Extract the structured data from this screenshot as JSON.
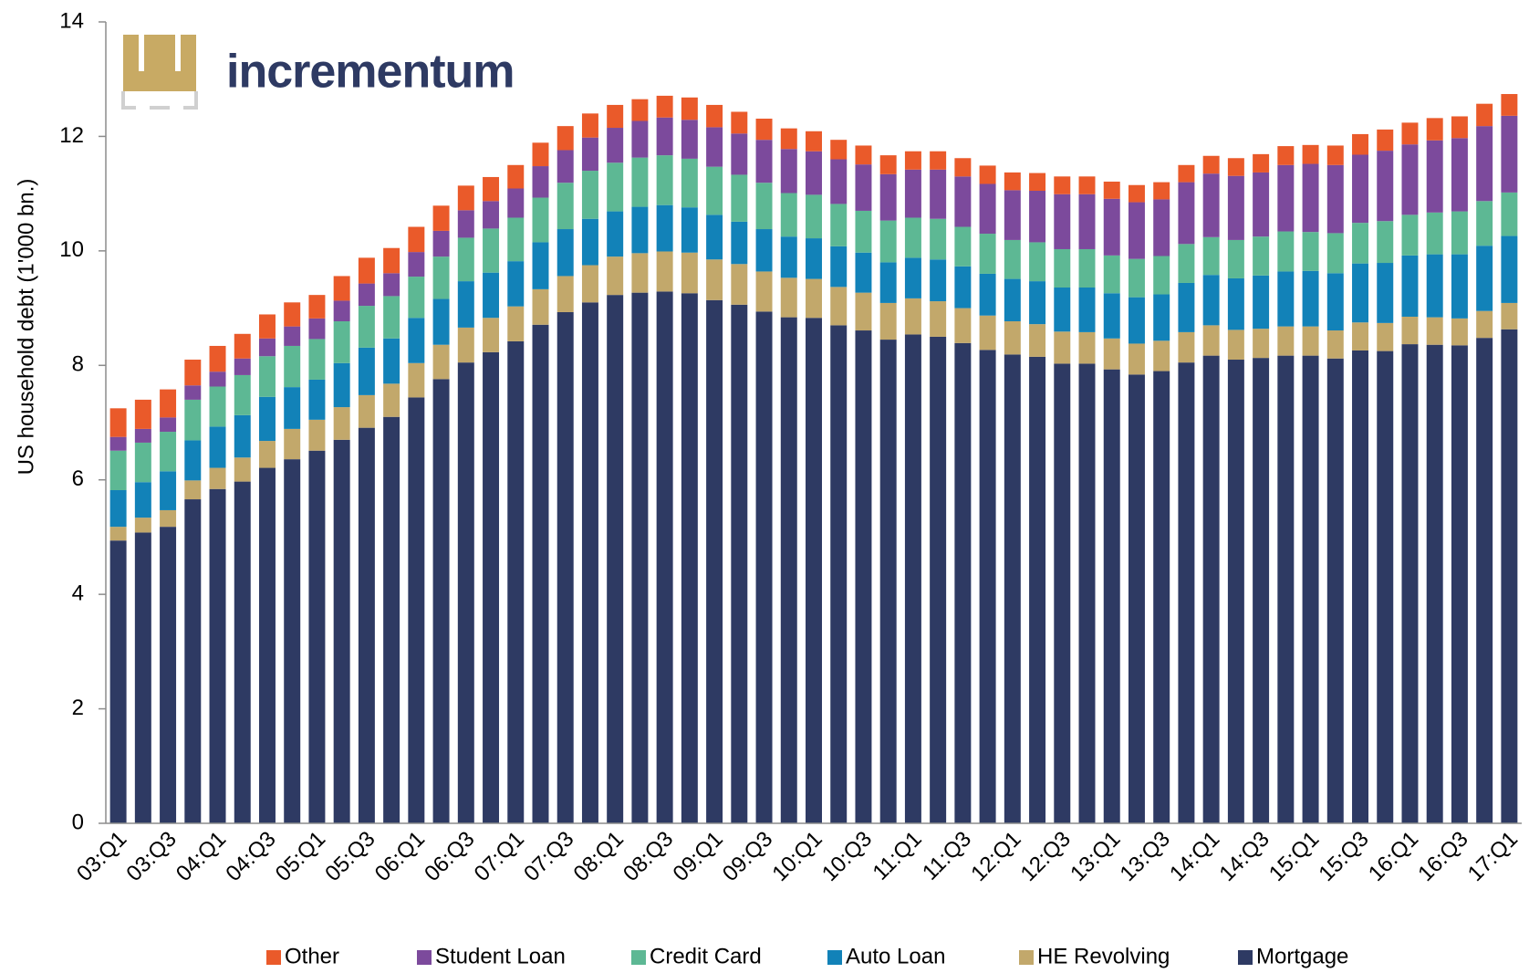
{
  "chart_data": {
    "type": "stacked-bar",
    "logo": "incrementum",
    "y_label": "US household debt (1'000 bn.)",
    "categories": [
      "03:Q1",
      null,
      "03:Q3",
      null,
      "04:Q1",
      null,
      "04:Q3",
      null,
      "05:Q1",
      null,
      "05:Q3",
      null,
      "06:Q1",
      null,
      "06:Q3",
      null,
      "07:Q1",
      null,
      "07:Q3",
      null,
      "08:Q1",
      null,
      "08:Q3",
      null,
      "09:Q1",
      null,
      "09:Q3",
      null,
      "10:Q1",
      null,
      "10:Q3",
      null,
      "11:Q1",
      null,
      "11:Q3",
      null,
      "12:Q1",
      null,
      "12:Q3",
      null,
      "13:Q1",
      null,
      "13:Q3",
      null,
      "14:Q1",
      null,
      "14:Q3",
      null,
      "15:Q1",
      null,
      "15:Q3",
      null,
      "16:Q1",
      null,
      "16:Q3",
      null,
      "17:Q1"
    ],
    "series": [
      {
        "name": "Mortgage",
        "color": "#2e3a63",
        "values": [
          4.94,
          5.08,
          5.18,
          5.66,
          5.84,
          5.97,
          6.21,
          6.36,
          6.51,
          6.7,
          6.91,
          7.1,
          7.44,
          7.76,
          8.05,
          8.23,
          8.42,
          8.71,
          8.93,
          9.1,
          9.23,
          9.27,
          9.29,
          9.26,
          9.14,
          9.06,
          8.94,
          8.84,
          8.83,
          8.7,
          8.61,
          8.45,
          8.54,
          8.5,
          8.39,
          8.27,
          8.19,
          8.15,
          8.03,
          8.03,
          7.93,
          7.84,
          7.9,
          8.05,
          8.17,
          8.1,
          8.13,
          8.17,
          8.17,
          8.12,
          8.26,
          8.25,
          8.37,
          8.36,
          8.35,
          8.48,
          8.63
        ]
      },
      {
        "name": "HE Revolving",
        "color": "#c2a86b",
        "values": [
          0.24,
          0.26,
          0.29,
          0.33,
          0.37,
          0.42,
          0.47,
          0.53,
          0.54,
          0.57,
          0.57,
          0.58,
          0.6,
          0.6,
          0.61,
          0.6,
          0.61,
          0.62,
          0.63,
          0.65,
          0.67,
          0.69,
          0.7,
          0.71,
          0.71,
          0.71,
          0.7,
          0.69,
          0.68,
          0.67,
          0.66,
          0.64,
          0.63,
          0.62,
          0.61,
          0.6,
          0.58,
          0.57,
          0.56,
          0.55,
          0.54,
          0.54,
          0.53,
          0.53,
          0.53,
          0.52,
          0.51,
          0.51,
          0.51,
          0.49,
          0.49,
          0.49,
          0.48,
          0.48,
          0.47,
          0.47,
          0.46
        ]
      },
      {
        "name": "Auto Loan",
        "color": "#1282b8",
        "values": [
          0.64,
          0.62,
          0.68,
          0.7,
          0.72,
          0.74,
          0.77,
          0.73,
          0.7,
          0.77,
          0.83,
          0.79,
          0.79,
          0.8,
          0.81,
          0.79,
          0.79,
          0.82,
          0.82,
          0.81,
          0.79,
          0.81,
          0.81,
          0.79,
          0.78,
          0.74,
          0.74,
          0.72,
          0.71,
          0.71,
          0.7,
          0.71,
          0.71,
          0.73,
          0.73,
          0.73,
          0.74,
          0.75,
          0.77,
          0.78,
          0.79,
          0.81,
          0.81,
          0.86,
          0.88,
          0.9,
          0.93,
          0.96,
          0.97,
          1.0,
          1.03,
          1.05,
          1.07,
          1.1,
          1.12,
          1.14,
          1.17
        ]
      },
      {
        "name": "Credit Card",
        "color": "#5db894",
        "values": [
          0.69,
          0.69,
          0.69,
          0.71,
          0.7,
          0.7,
          0.71,
          0.72,
          0.71,
          0.73,
          0.73,
          0.74,
          0.72,
          0.74,
          0.76,
          0.77,
          0.76,
          0.78,
          0.81,
          0.84,
          0.85,
          0.86,
          0.87,
          0.85,
          0.84,
          0.82,
          0.81,
          0.76,
          0.76,
          0.74,
          0.73,
          0.73,
          0.7,
          0.71,
          0.69,
          0.7,
          0.68,
          0.68,
          0.67,
          0.67,
          0.66,
          0.67,
          0.67,
          0.68,
          0.66,
          0.67,
          0.68,
          0.7,
          0.68,
          0.7,
          0.71,
          0.73,
          0.71,
          0.73,
          0.75,
          0.78,
          0.76
        ]
      },
      {
        "name": "Student Loan",
        "color": "#7c4a9c",
        "values": [
          0.24,
          0.24,
          0.25,
          0.25,
          0.26,
          0.29,
          0.31,
          0.34,
          0.36,
          0.36,
          0.39,
          0.4,
          0.43,
          0.45,
          0.48,
          0.48,
          0.51,
          0.55,
          0.57,
          0.58,
          0.61,
          0.64,
          0.66,
          0.68,
          0.69,
          0.72,
          0.75,
          0.77,
          0.76,
          0.78,
          0.81,
          0.81,
          0.84,
          0.86,
          0.88,
          0.87,
          0.87,
          0.9,
          0.96,
          0.96,
          0.99,
          0.99,
          0.99,
          1.08,
          1.11,
          1.12,
          1.12,
          1.16,
          1.19,
          1.19,
          1.19,
          1.23,
          1.23,
          1.26,
          1.28,
          1.31,
          1.34
        ]
      },
      {
        "name": "Other",
        "color": "#ea5a2a",
        "values": [
          0.5,
          0.51,
          0.49,
          0.45,
          0.45,
          0.43,
          0.42,
          0.42,
          0.41,
          0.43,
          0.45,
          0.44,
          0.44,
          0.44,
          0.43,
          0.42,
          0.41,
          0.41,
          0.42,
          0.42,
          0.4,
          0.38,
          0.38,
          0.39,
          0.39,
          0.38,
          0.37,
          0.36,
          0.35,
          0.34,
          0.33,
          0.33,
          0.32,
          0.32,
          0.32,
          0.32,
          0.31,
          0.31,
          0.31,
          0.31,
          0.3,
          0.3,
          0.3,
          0.3,
          0.31,
          0.31,
          0.32,
          0.33,
          0.33,
          0.34,
          0.36,
          0.37,
          0.38,
          0.39,
          0.38,
          0.39,
          0.38
        ]
      }
    ],
    "ylim": [
      0,
      14
    ],
    "yticks": [
      0,
      2,
      4,
      6,
      8,
      10,
      12,
      14
    ],
    "grid": false,
    "legend": "bottom"
  }
}
